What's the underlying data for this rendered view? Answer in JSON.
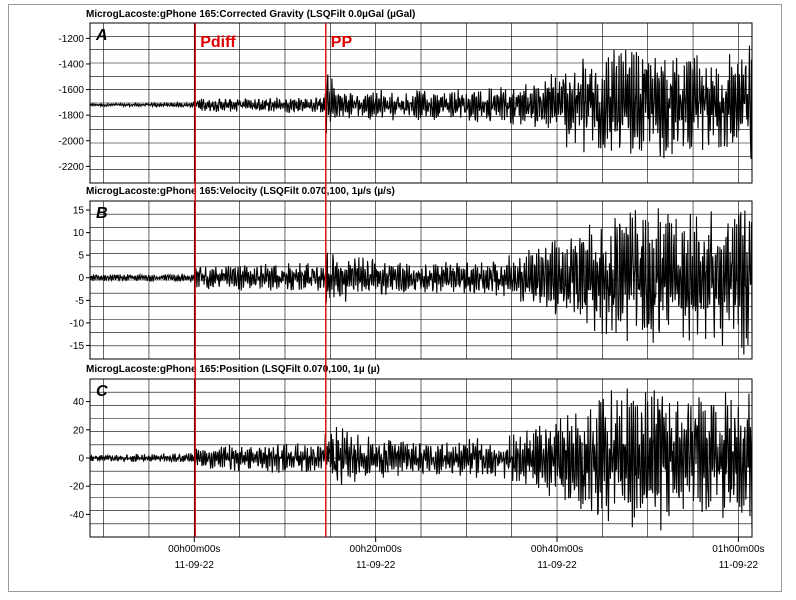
{
  "colors": {
    "trace": "#000000",
    "marker": "#e00000",
    "grid": "#000000",
    "frame": "#9a9a9a"
  },
  "time_axis": {
    "ticks": [
      {
        "t": 0,
        "time": "00h00m00s",
        "date": "11-09-22"
      },
      {
        "t": 20,
        "time": "00h20m00s",
        "date": "11-09-22"
      },
      {
        "t": 40,
        "time": "00h40m00s",
        "date": "11-09-22"
      },
      {
        "t": 60,
        "time": "01h00m00s",
        "date": "11-09-22"
      }
    ],
    "range_minutes": [
      -11.5,
      61.5
    ]
  },
  "markers": [
    {
      "label": "Pdiff",
      "t": 0.1
    },
    {
      "label": "PP",
      "t": 14.5
    }
  ],
  "chart_data": [
    {
      "type": "line",
      "letter": "A",
      "title": "MicrogLacoste:gPhone 165:Corrected Gravity (LSQFilt 0.0µGal (µGal)",
      "ylim": [
        -2330,
        -1080
      ],
      "yticks": [
        -1200,
        -1400,
        -1600,
        -1800,
        -2000,
        -2200
      ],
      "baseline": -1720,
      "envelope": [
        {
          "t": -11.5,
          "amp": 10
        },
        {
          "t": 0,
          "amp": 15
        },
        {
          "t": 0.2,
          "amp": 45
        },
        {
          "t": 14.4,
          "amp": 55
        },
        {
          "t": 14.5,
          "amp": 230
        },
        {
          "t": 16,
          "amp": 110
        },
        {
          "t": 24,
          "amp": 100
        },
        {
          "t": 32,
          "amp": 120
        },
        {
          "t": 38,
          "amp": 150
        },
        {
          "t": 42,
          "amp": 330
        },
        {
          "t": 46,
          "amp": 360
        },
        {
          "t": 52,
          "amp": 360
        },
        {
          "t": 58,
          "amp": 330
        },
        {
          "t": 61.5,
          "amp": 480
        }
      ],
      "series": [
        {
          "values": []
        }
      ]
    },
    {
      "type": "line",
      "letter": "B",
      "title": "MicrogLacoste:gPhone 165:Velocity (LSQFilt 0.070,100, 1µ/s (µ/s)",
      "ylim": [
        -18,
        17
      ],
      "yticks": [
        15,
        10,
        5,
        0,
        -5,
        -10,
        -15
      ],
      "baseline": 0,
      "envelope": [
        {
          "t": -11.5,
          "amp": 0.6
        },
        {
          "t": 0,
          "amp": 0.8
        },
        {
          "t": 0.2,
          "amp": 2.2
        },
        {
          "t": 14.4,
          "amp": 3.0
        },
        {
          "t": 14.5,
          "amp": 5.5
        },
        {
          "t": 18,
          "amp": 4.0
        },
        {
          "t": 26,
          "amp": 3.0
        },
        {
          "t": 34,
          "amp": 4.0
        },
        {
          "t": 38,
          "amp": 6.0
        },
        {
          "t": 42,
          "amp": 10.0
        },
        {
          "t": 46,
          "amp": 12.0
        },
        {
          "t": 50,
          "amp": 14.0
        },
        {
          "t": 56,
          "amp": 12.0
        },
        {
          "t": 61.5,
          "amp": 15.0
        }
      ],
      "series": [
        {
          "values": []
        }
      ]
    },
    {
      "type": "line",
      "letter": "C",
      "title": "MicrogLacoste:gPhone 165:Position (LSQFilt 0.070,100, 1µ (µ)",
      "ylim": [
        -56,
        56
      ],
      "yticks": [
        40,
        20,
        0,
        -20,
        -40
      ],
      "baseline": 0,
      "envelope": [
        {
          "t": -11.5,
          "amp": 2
        },
        {
          "t": 0,
          "amp": 3
        },
        {
          "t": 0.2,
          "amp": 7
        },
        {
          "t": 14.4,
          "amp": 10
        },
        {
          "t": 14.5,
          "amp": 22
        },
        {
          "t": 18,
          "amp": 14
        },
        {
          "t": 26,
          "amp": 10
        },
        {
          "t": 34,
          "amp": 14
        },
        {
          "t": 38,
          "amp": 20
        },
        {
          "t": 42,
          "amp": 35
        },
        {
          "t": 46,
          "amp": 40
        },
        {
          "t": 50,
          "amp": 48
        },
        {
          "t": 56,
          "amp": 38
        },
        {
          "t": 61.5,
          "amp": 44
        }
      ],
      "series": [
        {
          "values": []
        }
      ]
    }
  ]
}
